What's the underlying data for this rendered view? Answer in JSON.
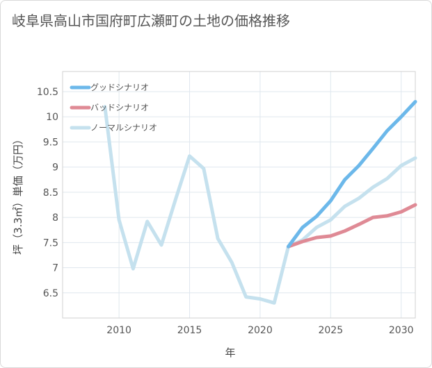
{
  "title": "岐阜県高山市国府町広瀬町の土地の価格推移",
  "chart_data": {
    "type": "line",
    "xlabel": "年",
    "ylabel": "坪（3.3㎡）単価（万円）",
    "xlim": [
      2006,
      2031
    ],
    "ylim": [
      6.0,
      10.9
    ],
    "xticks": [
      2010,
      2015,
      2020,
      2025,
      2030
    ],
    "yticks": [
      6.5,
      7,
      7.5,
      8,
      8.5,
      9,
      9.5,
      10,
      10.5
    ],
    "xtick_labels": [
      "2010",
      "2015",
      "2020",
      "2025",
      "2030"
    ],
    "ytick_labels": [
      "6.5",
      "7",
      "7.5",
      "8",
      "8.5",
      "9",
      "9.5",
      "10",
      "10.5"
    ],
    "grid": true,
    "legend": "top-left",
    "history": {
      "color": "#c5e1ee",
      "x": [
        2009,
        2010,
        2011,
        2012,
        2013,
        2014,
        2015,
        2016,
        2017,
        2018,
        2019,
        2020,
        2021,
        2022
      ],
      "y": [
        10.2,
        7.95,
        6.98,
        7.92,
        7.45,
        8.35,
        9.22,
        8.97,
        7.58,
        7.1,
        6.42,
        6.38,
        6.3,
        7.42
      ]
    },
    "series": [
      {
        "name": "グッドシナリオ",
        "color": "#6cb8ea",
        "x": [
          2022,
          2023,
          2024,
          2025,
          2026,
          2027,
          2028,
          2029,
          2030,
          2031
        ],
        "y": [
          7.42,
          7.8,
          8.02,
          8.33,
          8.75,
          9.03,
          9.37,
          9.72,
          10.0,
          10.3
        ]
      },
      {
        "name": "バッドシナリオ",
        "color": "#df8a95",
        "x": [
          2022,
          2023,
          2024,
          2025,
          2026,
          2027,
          2028,
          2029,
          2030,
          2031
        ],
        "y": [
          7.42,
          7.52,
          7.6,
          7.63,
          7.73,
          7.86,
          8.0,
          8.03,
          8.11,
          8.25
        ]
      },
      {
        "name": "ノーマルシナリオ",
        "color": "#c5e1ee",
        "x": [
          2022,
          2023,
          2024,
          2025,
          2026,
          2027,
          2028,
          2029,
          2030,
          2031
        ],
        "y": [
          7.42,
          7.55,
          7.8,
          7.95,
          8.22,
          8.38,
          8.6,
          8.77,
          9.03,
          9.18
        ]
      }
    ]
  }
}
